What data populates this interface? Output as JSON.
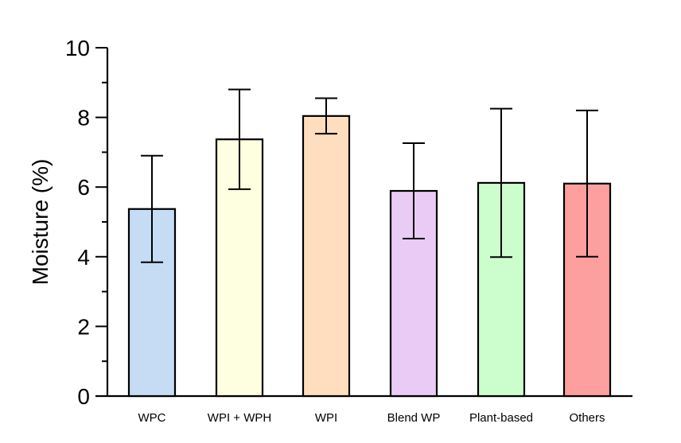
{
  "chart_data": {
    "type": "bar",
    "title": "",
    "xlabel": "",
    "ylabel": "Moisture (%)",
    "ylim": [
      0,
      10
    ],
    "yticks": [
      "0",
      "2",
      "4",
      "6",
      "8",
      "10"
    ],
    "minor_ticks": [
      1,
      3,
      5,
      7,
      9
    ],
    "grid": false,
    "categories": [
      "WPC",
      "WPI + WPH",
      "WPI",
      "Blend WP",
      "Plant-based",
      "Others"
    ],
    "values": [
      5.37,
      7.37,
      8.04,
      5.89,
      6.12,
      6.1
    ],
    "errors": [
      1.53,
      1.43,
      0.51,
      1.37,
      2.13,
      2.1
    ],
    "colors": [
      "#c6dcf5",
      "#fefee0",
      "#fedebe",
      "#eacbf6",
      "#ccfdcc",
      "#fe9f9f"
    ]
  }
}
